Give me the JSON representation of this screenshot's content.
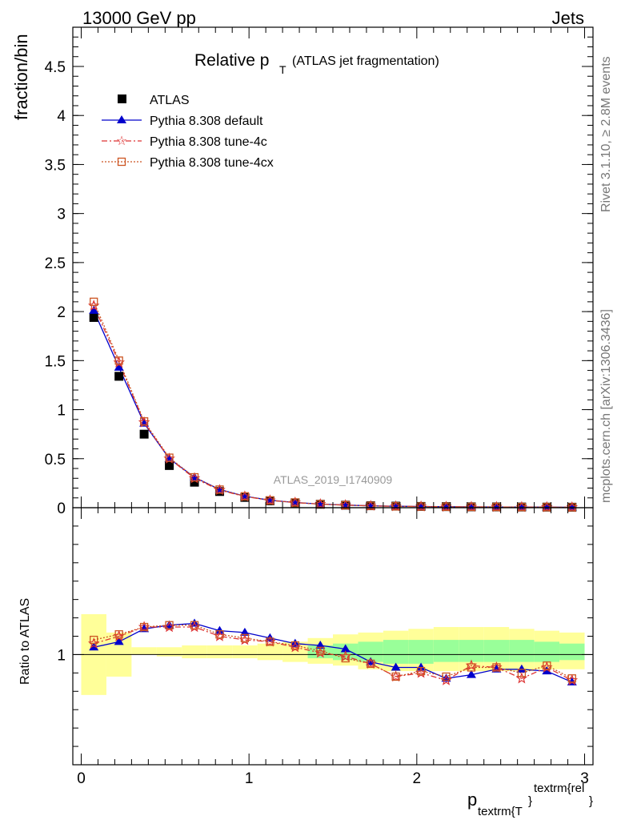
{
  "header": {
    "left": "13000 GeV pp",
    "right": "Jets"
  },
  "side": {
    "rivet": "Rivet 3.1.10, ≥ 2.8M events",
    "mcplots": "mcplots.cern.ch [arXiv:1306.3436]"
  },
  "chart_data": {
    "type": "scatter",
    "title_main": "Relative p",
    "title_sub": "T",
    "title_rest": "(ATLAS jet fragmentation)",
    "watermark": "ATLAS_2019_I1740909",
    "ylabel": "fraction/bin",
    "ratio_ylabel": "Ratio to ATLAS",
    "xlabel_main": "p",
    "xlabel_sub": "textrm{T",
    "xlabel_sub_close": "}",
    "xlabel_sup": "textrm{rel",
    "xlabel_sup_close": "}",
    "xlim": [
      -0.05,
      3.05
    ],
    "ylim": [
      0,
      4.9
    ],
    "ratio_ylim": [
      0.4,
      1.8
    ],
    "x_ticks": [
      "0",
      "1",
      "2",
      "3"
    ],
    "y_ticks": [
      "0",
      "0.5",
      "1",
      "1.5",
      "2",
      "2.5",
      "3",
      "3.5",
      "4",
      "4.5"
    ],
    "ratio_y_ticks": [
      "1"
    ],
    "x": [
      0.075,
      0.225,
      0.375,
      0.525,
      0.675,
      0.825,
      0.975,
      1.125,
      1.275,
      1.425,
      1.575,
      1.725,
      1.875,
      2.025,
      2.175,
      2.325,
      2.475,
      2.625,
      2.775,
      2.925
    ],
    "series": [
      {
        "name": "ATLAS",
        "color": "#000000",
        "marker": "square",
        "values": [
          1.94,
          1.34,
          0.75,
          0.43,
          0.26,
          0.165,
          0.105,
          0.07,
          0.05,
          0.035,
          0.026,
          0.02,
          0.016,
          0.013,
          0.011,
          0.009,
          0.008,
          0.007,
          0.006,
          0.005
        ]
      },
      {
        "name": "Pythia 8.308 default",
        "color": "#0000cc",
        "marker": "triangle",
        "line": "solid",
        "values": [
          2.01,
          1.43,
          0.86,
          0.5,
          0.31,
          0.185,
          0.118,
          0.076,
          0.053,
          0.037,
          0.027,
          0.019,
          0.015,
          0.012,
          0.0095,
          0.008,
          0.0073,
          0.0065,
          0.0056,
          0.0043
        ],
        "ratio": [
          1.04,
          1.07,
          1.14,
          1.16,
          1.17,
          1.13,
          1.12,
          1.09,
          1.06,
          1.05,
          1.03,
          0.96,
          0.93,
          0.93,
          0.87,
          0.89,
          0.92,
          0.92,
          0.91,
          0.85
        ]
      },
      {
        "name": "Pythia 8.308 tune-4c",
        "color": "#dd3333",
        "marker": "star",
        "line": "dashdot",
        "values": [
          2.06,
          1.48,
          0.87,
          0.5,
          0.3,
          0.18,
          0.114,
          0.074,
          0.052,
          0.036,
          0.026,
          0.019,
          0.014,
          0.012,
          0.0095,
          0.0085,
          0.0074,
          0.0064,
          0.0056,
          0.0043
        ],
        "ratio": [
          1.06,
          1.1,
          1.15,
          1.15,
          1.15,
          1.1,
          1.08,
          1.07,
          1.04,
          1.01,
          0.99,
          0.95,
          0.88,
          0.9,
          0.86,
          0.94,
          0.93,
          0.87,
          0.93,
          0.86
        ]
      },
      {
        "name": "Pythia 8.308 tune-4cx",
        "color": "#cc5522",
        "marker": "opensquare",
        "line": "dotted",
        "values": [
          2.1,
          1.5,
          0.88,
          0.51,
          0.31,
          0.185,
          0.116,
          0.075,
          0.053,
          0.036,
          0.026,
          0.019,
          0.014,
          0.012,
          0.0098,
          0.0086,
          0.0074,
          0.0066,
          0.0056,
          0.0044
        ],
        "ratio": [
          1.08,
          1.11,
          1.15,
          1.16,
          1.16,
          1.11,
          1.09,
          1.07,
          1.05,
          1.02,
          0.98,
          0.95,
          0.88,
          0.91,
          0.88,
          0.93,
          0.93,
          0.9,
          0.94,
          0.87
        ]
      }
    ],
    "band_yellow": {
      "color": "#ffff99",
      "lo": [
        0.78,
        0.88,
        1.0,
        0.99,
        0.98,
        0.98,
        0.98,
        0.97,
        0.96,
        0.95,
        0.94,
        0.92,
        0.91,
        0.91,
        0.91,
        0.91,
        0.91,
        0.91,
        0.92,
        0.92
      ],
      "hi": [
        1.22,
        1.12,
        1.04,
        1.04,
        1.05,
        1.05,
        1.05,
        1.06,
        1.07,
        1.09,
        1.11,
        1.12,
        1.13,
        1.14,
        1.15,
        1.15,
        1.15,
        1.14,
        1.13,
        1.12
      ]
    },
    "band_green": {
      "color": "#99ff99",
      "lo": [
        null,
        null,
        null,
        null,
        null,
        null,
        null,
        null,
        null,
        0.98,
        0.97,
        0.96,
        0.95,
        0.95,
        0.96,
        0.96,
        0.96,
        0.96,
        0.96,
        0.97
      ],
      "hi": [
        null,
        null,
        null,
        null,
        null,
        null,
        null,
        null,
        null,
        1.05,
        1.06,
        1.07,
        1.08,
        1.08,
        1.08,
        1.08,
        1.08,
        1.08,
        1.07,
        1.06
      ]
    }
  }
}
